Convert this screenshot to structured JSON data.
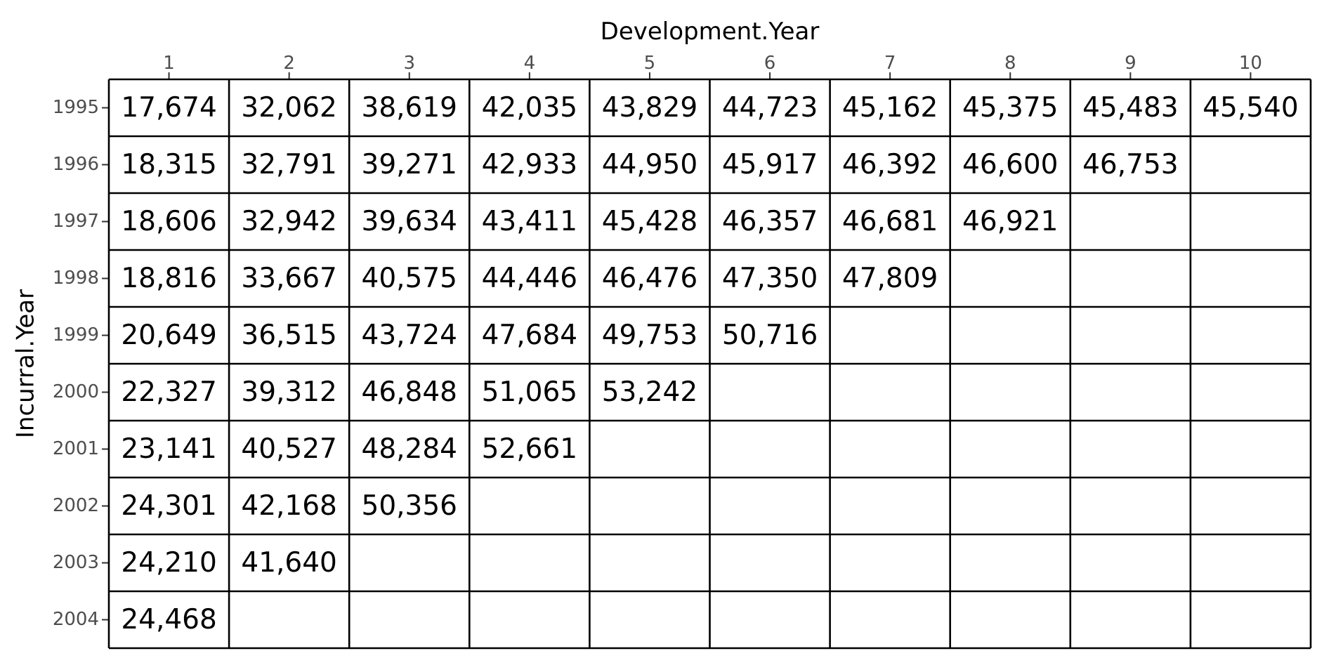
{
  "chart_data": {
    "type": "table",
    "title": "",
    "xlabel": "Development.Year",
    "ylabel": "Incurral.Year",
    "x_position": "top",
    "grid": true,
    "legend": "none",
    "x": [
      "1",
      "2",
      "3",
      "4",
      "5",
      "6",
      "7",
      "8",
      "9",
      "10"
    ],
    "y": [
      "1995",
      "1996",
      "1997",
      "1998",
      "1999",
      "2000",
      "2001",
      "2002",
      "2003",
      "2004"
    ],
    "cells": [
      [
        "17,674",
        "32,062",
        "38,619",
        "42,035",
        "43,829",
        "44,723",
        "45,162",
        "45,375",
        "45,483",
        "45,540"
      ],
      [
        "18,315",
        "32,791",
        "39,271",
        "42,933",
        "44,950",
        "45,917",
        "46,392",
        "46,600",
        "46,753",
        ""
      ],
      [
        "18,606",
        "32,942",
        "39,634",
        "43,411",
        "45,428",
        "46,357",
        "46,681",
        "46,921",
        "",
        ""
      ],
      [
        "18,816",
        "33,667",
        "40,575",
        "44,446",
        "46,476",
        "47,350",
        "47,809",
        "",
        "",
        ""
      ],
      [
        "20,649",
        "36,515",
        "43,724",
        "47,684",
        "49,753",
        "50,716",
        "",
        "",
        "",
        ""
      ],
      [
        "22,327",
        "39,312",
        "46,848",
        "51,065",
        "53,242",
        "",
        "",
        "",
        "",
        ""
      ],
      [
        "23,141",
        "40,527",
        "48,284",
        "52,661",
        "",
        "",
        "",
        "",
        "",
        ""
      ],
      [
        "24,301",
        "42,168",
        "50,356",
        "",
        "",
        "",
        "",
        "",
        "",
        ""
      ],
      [
        "24,210",
        "41,640",
        "",
        "",
        "",
        "",
        "",
        "",
        "",
        ""
      ],
      [
        "24,468",
        "",
        "",
        "",
        "",
        "",
        "",
        "",
        "",
        ""
      ]
    ],
    "colors": {
      "grid": "#000000",
      "text": "#000000",
      "tick": "#4d4d4d",
      "background": "#ffffff"
    }
  }
}
